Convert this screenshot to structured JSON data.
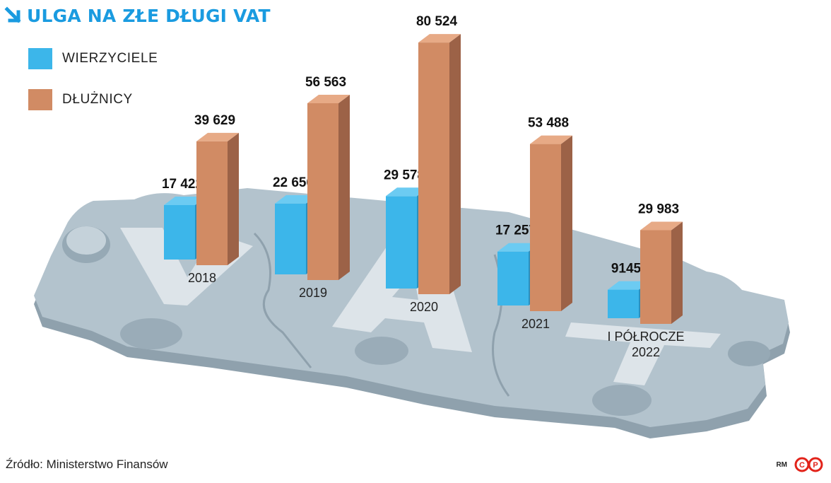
{
  "title": "ULGA NA ZŁE DŁUGI VAT",
  "source": "Źródło: Ministerstwo Finansów",
  "credit": "RM",
  "logo_text": "CP",
  "colors": {
    "accent": "#1a9be0",
    "wierzyciele": "#3cb6ea",
    "dluznicy": "#d18b64",
    "puzzle": "#a8bac6",
    "logo": "#e2231a"
  },
  "icons": {
    "title": "arrow-down-right-icon"
  },
  "chart_data": {
    "type": "bar",
    "title": "ULGA NA ZŁE DŁUGI VAT",
    "categories": [
      "2018",
      "2019",
      "2020",
      "2021",
      "I PÓŁROCZE 2022"
    ],
    "category_lines": [
      [
        "2018"
      ],
      [
        "2019"
      ],
      [
        "2020"
      ],
      [
        "2021"
      ],
      [
        "I PÓŁROCZE",
        "2022"
      ]
    ],
    "series": [
      {
        "name": "WIERZYCIELE",
        "values": [
          17422,
          22656,
          29578,
          17257,
          9145
        ],
        "labels": [
          "17 422",
          "22 656",
          "29 578",
          "17 257",
          "9145"
        ]
      },
      {
        "name": "DŁUŻNICY",
        "values": [
          39629,
          56563,
          80524,
          53488,
          29983
        ],
        "labels": [
          "39 629",
          "56 563",
          "80 524",
          "53 488",
          "29 983"
        ]
      }
    ],
    "legend_position": "top-left",
    "grid": false,
    "style": "3d-bars-on-puzzle-pieces"
  }
}
